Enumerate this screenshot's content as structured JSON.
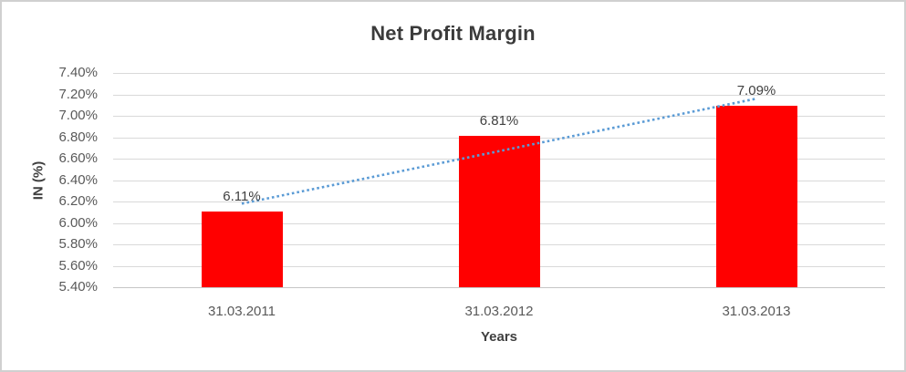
{
  "chart_data": {
    "type": "bar",
    "title": "Net Profit Margin",
    "xlabel": "Years",
    "ylabel": "IN (%)",
    "categories": [
      "31.03.2011",
      "31.03.2012",
      "31.03.2013"
    ],
    "values": [
      6.11,
      6.81,
      7.09
    ],
    "data_labels": [
      "6.11%",
      "6.81%",
      "7.09%"
    ],
    "ylim": [
      5.4,
      7.4
    ],
    "ytick_step": 0.2,
    "ytick_labels": [
      "7.40%",
      "7.20%",
      "7.00%",
      "6.80%",
      "6.60%",
      "6.40%",
      "6.20%",
      "6.00%",
      "5.80%",
      "5.60%",
      "5.40%"
    ],
    "grid": true,
    "legend": "none",
    "bar_color": "#FF0000",
    "gridline_color": "#d9d9d9",
    "tick_label_color": "#595959",
    "data_label_color": "#404040",
    "title_color": "#3b3b3b",
    "trendline": {
      "type": "linear",
      "style": "dotted",
      "color": "#5B9BD5",
      "start_value": 6.18,
      "end_value": 7.16
    }
  }
}
